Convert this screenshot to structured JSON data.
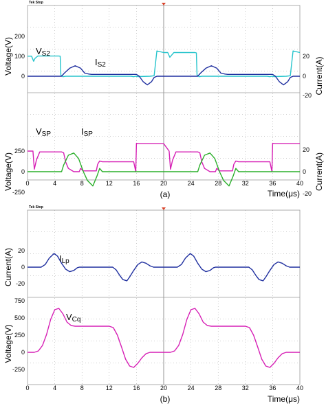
{
  "colors": {
    "voltage_sec": "#26c4cc",
    "current_sec": "#1f2f9f",
    "voltage_pri": "#d61fb5",
    "current_pri": "#2aaf2a",
    "grid": "#9a9a9a",
    "tick_marker": "#d9432a"
  },
  "header_label": "Tek Stop",
  "chart_data": [
    {
      "panel": "(a)",
      "type": "line",
      "xlabel": "Time(μs)",
      "x_ticks": [
        "0",
        "4",
        "8",
        "12",
        "16",
        "20",
        "24",
        "28",
        "32",
        "36",
        "40"
      ],
      "xlim": [
        0,
        40
      ],
      "subplots": [
        {
          "ylabel_left": "Voltage(V)",
          "ylabel_right": "Current(A)",
          "left_ticks": [
            "200",
            "100",
            "0"
          ],
          "right_ticks": [
            "20",
            "0",
            "-20"
          ],
          "ylim_left": [
            -100,
            250
          ],
          "ylim_right": [
            -25,
            35
          ],
          "series": [
            {
              "name": "VS2",
              "label_main": "V",
              "label_sub": "S2",
              "axis": "left",
              "color": "voltage_sec",
              "x": [
                0,
                0.6,
                0.9,
                1.1,
                1.5,
                4.6,
                4.8,
                4.9,
                5.2,
                5.6,
                10.3,
                15.2,
                15.6,
                15.9,
                16.2,
                18.0,
                18.6,
                19.0,
                20.0,
                20.6,
                20.9,
                21.1,
                21.5,
                24.6,
                24.8,
                24.9,
                25.2,
                25.6,
                30.3,
                35.2,
                35.6,
                35.9,
                36.2,
                38.0,
                38.6,
                39.0,
                40
              ],
              "y": [
                127,
                127,
                95,
                113,
                128,
                128,
                127,
                8,
                -3,
                0,
                0,
                0,
                -3,
                0,
                -2,
                0,
                3,
                160,
                150,
                150,
                120,
                130,
                150,
                150,
                148,
                8,
                -3,
                0,
                0,
                0,
                -3,
                0,
                -2,
                0,
                3,
                160,
                150
              ]
            },
            {
              "name": "IS2",
              "label_main": "I",
              "label_sub": "S2",
              "axis": "right",
              "color": "current_sec",
              "x": [
                0,
                5,
                5.4,
                6.2,
                7.0,
                7.8,
                8.4,
                9.0,
                9.4,
                16.0,
                16.4,
                17.0,
                17.6,
                18.2,
                18.6,
                19.0,
                20,
                25,
                25.4,
                26.2,
                27.0,
                27.8,
                28.4,
                29.0,
                29.4,
                36.0,
                36.4,
                37.0,
                37.6,
                38.2,
                38.6,
                39.0,
                40
              ],
              "y": [
                0,
                0,
                5,
                13,
                17,
                13,
                5,
                3.5,
                3,
                3,
                0,
                -9,
                -14,
                -9,
                -2,
                0,
                0,
                0,
                5,
                13,
                17,
                13,
                5,
                3.5,
                3,
                3,
                0,
                -9,
                -14,
                -9,
                -2,
                0,
                0
              ]
            }
          ]
        },
        {
          "ylabel_left": "Voltage(V)",
          "ylabel_right": "Current(A)",
          "left_ticks": [
            "250",
            "0",
            "-250"
          ],
          "right_ticks": [
            "20",
            "0",
            "-20"
          ],
          "ylim_left": [
            -350,
            500
          ],
          "ylim_right": [
            -25,
            25
          ],
          "series": [
            {
              "name": "VSP",
              "label_main": "V",
              "label_sub": "SP",
              "axis": "left",
              "color": "voltage_pri",
              "x": [
                0,
                0.8,
                1.0,
                1.3,
                1.8,
                5.0,
                5.3,
                5.6,
                6.0,
                6.8,
                7.6,
                7.8,
                8.2,
                10.1,
                10.3,
                10.6,
                11.0,
                15.6,
                15.9,
                16.0,
                16.3,
                20.0,
                20.8,
                21.0,
                21.3,
                21.8,
                25.0,
                25.3,
                25.6,
                26.0,
                26.8,
                27.6,
                27.8,
                28.2,
                30.1,
                30.3,
                30.6,
                31.0,
                35.6,
                35.9,
                36.0,
                36.3,
                40
              ],
              "y": [
                250,
                250,
                30,
                140,
                240,
                240,
                230,
                120,
                40,
                0,
                0,
                40,
                10,
                10,
                90,
                130,
                120,
                120,
                0,
                345,
                340,
                340,
                250,
                30,
                140,
                240,
                240,
                230,
                120,
                40,
                0,
                0,
                40,
                10,
                10,
                90,
                130,
                120,
                120,
                0,
                345,
                340,
                340
              ]
            },
            {
              "name": "ISP",
              "label_main": "I",
              "label_sub": "SP",
              "axis": "right",
              "color": "current_pri",
              "x": [
                0,
                5,
                5.3,
                6.0,
                6.8,
                7.5,
                8.2,
                8.8,
                9.6,
                10.2,
                10.6,
                11.0,
                20,
                25,
                25.3,
                26.0,
                26.8,
                27.5,
                28.2,
                28.8,
                29.6,
                30.2,
                30.6,
                31.0,
                40
              ],
              "y": [
                0,
                0,
                6,
                15,
                17,
                12,
                0,
                -8,
                -13,
                -4,
                3,
                0,
                0,
                0,
                6,
                15,
                17,
                12,
                0,
                -8,
                -13,
                -4,
                3,
                0,
                0
              ]
            }
          ]
        }
      ]
    },
    {
      "panel": "(b)",
      "type": "line",
      "xlabel": "Time(μs)",
      "x_ticks": [
        "0",
        "4",
        "8",
        "12",
        "16",
        "20",
        "24",
        "28",
        "32",
        "36",
        "40"
      ],
      "xlim": [
        0,
        40
      ],
      "subplots": [
        {
          "ylabel_left": "Current(A)",
          "left_ticks": [
            "20",
            "0",
            "-20"
          ],
          "ylim_left": [
            -35,
            40
          ],
          "series": [
            {
              "name": "ILp",
              "label_main": "I",
              "label_sub": "Lp",
              "axis": "left",
              "color": "current_sec",
              "x": [
                0,
                2.0,
                2.6,
                3.2,
                3.9,
                4.4,
                5.0,
                5.6,
                6.2,
                6.8,
                7.3,
                7.6,
                12.5,
                13.0,
                13.5,
                14.0,
                14.6,
                15.0,
                15.6,
                16.2,
                16.8,
                17.4,
                18.0,
                18.5,
                20,
                22.0,
                22.6,
                23.2,
                23.9,
                24.4,
                25.0,
                25.6,
                26.2,
                26.8,
                27.3,
                27.6,
                32.5,
                33.0,
                33.5,
                34.0,
                34.6,
                35.0,
                35.6,
                36.2,
                36.8,
                37.4,
                38.0,
                38.5,
                40
              ],
              "y": [
                0,
                0,
                4,
                14,
                21,
                17,
                6,
                -3,
                -7,
                -5,
                -1,
                0,
                0,
                -4,
                -12,
                -19,
                -21,
                -15,
                -5,
                4,
                8,
                6,
                2,
                0,
                0,
                0,
                4,
                14,
                21,
                17,
                6,
                -3,
                -7,
                -5,
                -1,
                0,
                0,
                -4,
                -12,
                -19,
                -21,
                -15,
                -5,
                4,
                8,
                6,
                2,
                0,
                0
              ]
            }
          ]
        },
        {
          "ylabel_left": "Voltage(V)",
          "left_ticks": [
            "500",
            "250",
            "0",
            "-250"
          ],
          "extra_left_tick": "750",
          "ylim_left": [
            -400,
            750
          ],
          "series": [
            {
              "name": "VCq",
              "label_main": "V",
              "label_sub": "Cq",
              "axis": "left",
              "color": "voltage_pri",
              "x": [
                0,
                1.0,
                1.6,
                2.2,
                2.8,
                3.4,
                4.0,
                4.6,
                5.2,
                5.8,
                6.4,
                7.0,
                7.6,
                12.0,
                12.6,
                13.2,
                13.8,
                14.4,
                15.0,
                15.6,
                16.2,
                16.8,
                17.4,
                18.0,
                20,
                21.0,
                21.6,
                22.2,
                22.8,
                23.4,
                24.0,
                24.6,
                25.2,
                25.8,
                26.4,
                27.0,
                27.6,
                32.0,
                32.6,
                33.2,
                33.8,
                34.4,
                35.0,
                35.6,
                36.2,
                36.8,
                37.4,
                38.0,
                40
              ],
              "y": [
                0,
                0,
                20,
                100,
                260,
                480,
                620,
                640,
                560,
                440,
                390,
                380,
                380,
                380,
                360,
                250,
                80,
                -100,
                -200,
                -220,
                -160,
                -80,
                -20,
                0,
                0,
                0,
                20,
                100,
                260,
                480,
                620,
                640,
                560,
                440,
                390,
                380,
                380,
                380,
                360,
                250,
                80,
                -100,
                -200,
                -220,
                -160,
                -80,
                -20,
                0,
                0
              ]
            }
          ]
        }
      ]
    }
  ]
}
